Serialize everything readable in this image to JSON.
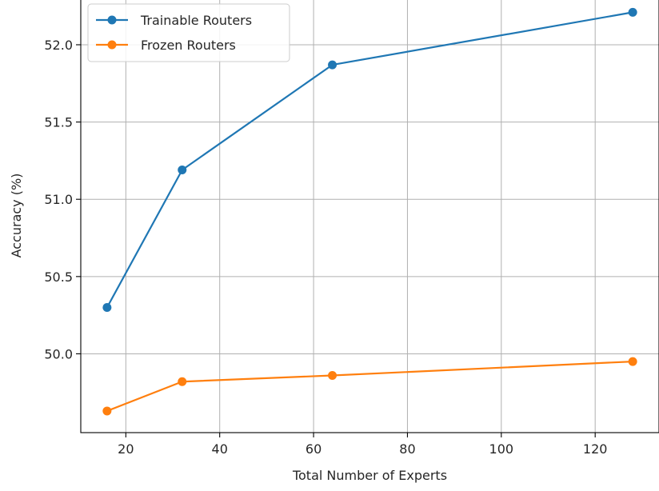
{
  "chart_data": {
    "type": "line",
    "title": "",
    "xlabel": "Total Number of Experts",
    "ylabel": "Accuracy (%)",
    "x": [
      16,
      32,
      64,
      128
    ],
    "xlim": [
      10.4,
      133.6
    ],
    "ylim": [
      49.49,
      52.3
    ],
    "xticks": [
      20,
      40,
      60,
      80,
      100,
      120
    ],
    "yticks": [
      50.0,
      50.5,
      51.0,
      51.5,
      52.0
    ],
    "xtick_labels": [
      "20",
      "40",
      "60",
      "80",
      "100",
      "120"
    ],
    "ytick_labels": [
      "50.0",
      "50.5",
      "51.0",
      "51.5",
      "52.0"
    ],
    "grid": true,
    "legend_position": "top-left",
    "series": [
      {
        "name": "Trainable Routers",
        "color": "#1f77b4",
        "values": [
          50.3,
          51.19,
          51.87,
          52.21
        ]
      },
      {
        "name": "Frozen Routers",
        "color": "#ff7f0e",
        "values": [
          49.63,
          49.82,
          49.86,
          49.95
        ]
      }
    ]
  }
}
